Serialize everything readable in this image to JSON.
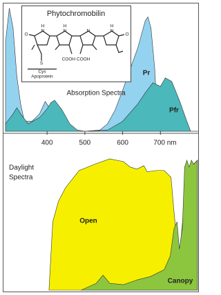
{
  "chart_data": [
    {
      "type": "area",
      "title": "Absorption Spectra",
      "xlim": [
        290,
        800
      ],
      "ylim": [
        0,
        1
      ],
      "xticks": [
        400,
        500,
        600,
        {
          "value": 700,
          "label": "700 nm"
        }
      ],
      "series": [
        {
          "name": "Pr",
          "color": "#94d3f0",
          "x": [
            290,
            300,
            310,
            320,
            330,
            340,
            360,
            380,
            395,
            410,
            420,
            440,
            460,
            500,
            540,
            560,
            580,
            600,
            620,
            640,
            650,
            660,
            667,
            675,
            685,
            690,
            700,
            710,
            800
          ],
          "values": [
            0.72,
            0.99,
            0.83,
            0.44,
            0.22,
            0.08,
            0.08,
            0.14,
            0.24,
            0.17,
            0.08,
            0.03,
            0,
            0,
            0.01,
            0.06,
            0.17,
            0.33,
            0.5,
            0.67,
            0.78,
            0.89,
            0.92,
            0.83,
            0.5,
            0.22,
            0.03,
            0,
            0
          ]
        },
        {
          "name": "Pfr",
          "color": "#4bb8bb",
          "x": [
            290,
            310,
            320,
            330,
            350,
            380,
            400,
            410,
            420,
            440,
            460,
            480,
            500,
            560,
            600,
            640,
            660,
            680,
            700,
            713,
            730,
            750,
            770,
            780,
            800
          ],
          "values": [
            0.06,
            0.14,
            0.19,
            0.14,
            0.06,
            0.11,
            0.18,
            0.23,
            0.25,
            0.17,
            0.06,
            0.01,
            0,
            0.01,
            0.08,
            0.22,
            0.31,
            0.39,
            0.36,
            0.43,
            0.4,
            0.25,
            0.08,
            0,
            0
          ]
        }
      ],
      "inset": {
        "title": "Phytochromobilin",
        "labels": [
          "H",
          "N",
          "H",
          "N",
          "N",
          "H",
          "N",
          "O",
          "O",
          "S",
          "Cys",
          "Apoprotein",
          "COOH COOH"
        ]
      }
    },
    {
      "type": "area",
      "title_lines": [
        "Daylight",
        "Spectra"
      ],
      "xlim": [
        290,
        800
      ],
      "ylim": [
        0,
        1
      ],
      "series": [
        {
          "name": "Open",
          "color": "#f6f000",
          "x": [
            405,
            415,
            430,
            449,
            485,
            530,
            566,
            602,
            620,
            638,
            656,
            665,
            690,
            710,
            728,
            735,
            744,
            752,
            760,
            768,
            780,
            798
          ],
          "values": [
            0,
            0.5,
            0.65,
            0.75,
            0.875,
            0.925,
            0.96,
            0.94,
            0.9,
            0.885,
            0.91,
            0.865,
            0.875,
            0.875,
            0.825,
            0.6,
            0.35,
            0.3,
            0.55,
            0.8,
            0.9,
            0.95
          ]
        },
        {
          "name": "Canopy",
          "color": "#8cc63f",
          "x": [
            490,
            530,
            548,
            566,
            602,
            638,
            674,
            710,
            726,
            736,
            744,
            750,
            758,
            764,
            770,
            776,
            782,
            788,
            798
          ],
          "values": [
            0,
            0.05,
            0.11,
            0.05,
            0.04,
            0.075,
            0.1,
            0.15,
            0.25,
            0.45,
            0.5,
            0.3,
            0.45,
            0.9,
            0.95,
            0.9,
            0.95,
            0.92,
            0.95
          ]
        }
      ]
    }
  ]
}
